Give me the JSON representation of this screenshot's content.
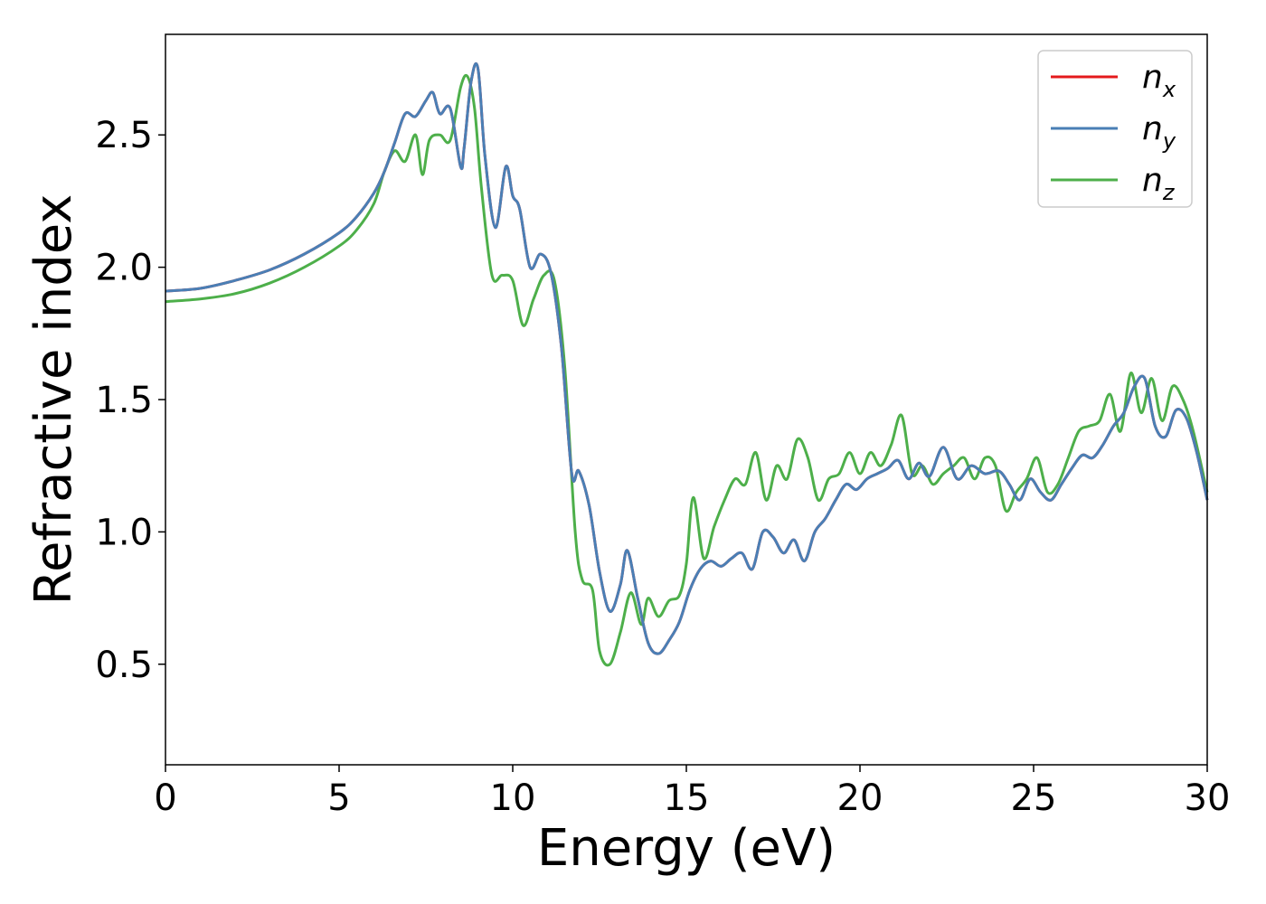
{
  "chart_data": {
    "type": "line",
    "xlabel": "Energy (eV)",
    "ylabel": "Refractive index",
    "xlim": [
      0,
      30
    ],
    "ylim": [
      0.12,
      2.88
    ],
    "xticks": [
      "0",
      "5",
      "10",
      "15",
      "20",
      "25",
      "30"
    ],
    "yticks": [
      "0.5",
      "1.0",
      "1.5",
      "2.0",
      "2.5"
    ],
    "grid": false,
    "legend_position": "top-right",
    "series": [
      {
        "name": "n",
        "subscript": "x",
        "color": "#e41a1c",
        "x": [
          0,
          1,
          2,
          3,
          4,
          5,
          5.5,
          6,
          6.3,
          6.6,
          6.9,
          7.2,
          7.5,
          7.7,
          7.9,
          8.2,
          8.5,
          8.6,
          8.8,
          9.0,
          9.2,
          9.5,
          9.8,
          10.0,
          10.2,
          10.5,
          10.8,
          11.1,
          11.4,
          11.7,
          11.9,
          12.2,
          12.5,
          12.8,
          13.1,
          13.3,
          13.6,
          13.9,
          14.2,
          14.5,
          14.8,
          15.1,
          15.4,
          15.7,
          16.0,
          16.3,
          16.6,
          16.9,
          17.2,
          17.5,
          17.8,
          18.1,
          18.4,
          18.7,
          19.0,
          19.3,
          19.6,
          19.9,
          20.2,
          20.5,
          20.8,
          21.1,
          21.4,
          21.7,
          22.0,
          22.4,
          22.8,
          23.2,
          23.6,
          24.0,
          24.3,
          24.6,
          24.9,
          25.2,
          25.5,
          25.8,
          26.1,
          26.4,
          26.7,
          27.0,
          27.3,
          27.6,
          27.9,
          28.2,
          28.5,
          28.8,
          29.1,
          29.4,
          29.7,
          30.0
        ],
        "values": [
          1.91,
          1.92,
          1.95,
          1.99,
          2.05,
          2.13,
          2.19,
          2.28,
          2.36,
          2.47,
          2.58,
          2.57,
          2.63,
          2.66,
          2.58,
          2.6,
          2.38,
          2.45,
          2.7,
          2.75,
          2.42,
          2.15,
          2.38,
          2.27,
          2.22,
          2.0,
          2.05,
          1.98,
          1.7,
          1.22,
          1.23,
          1.1,
          0.85,
          0.7,
          0.8,
          0.93,
          0.75,
          0.58,
          0.54,
          0.59,
          0.66,
          0.78,
          0.86,
          0.89,
          0.87,
          0.9,
          0.92,
          0.86,
          1.0,
          0.98,
          0.92,
          0.97,
          0.89,
          1.0,
          1.05,
          1.12,
          1.18,
          1.16,
          1.2,
          1.22,
          1.24,
          1.27,
          1.2,
          1.26,
          1.21,
          1.32,
          1.2,
          1.25,
          1.22,
          1.23,
          1.18,
          1.12,
          1.2,
          1.15,
          1.12,
          1.18,
          1.24,
          1.29,
          1.28,
          1.33,
          1.4,
          1.45,
          1.55,
          1.58,
          1.4,
          1.36,
          1.46,
          1.43,
          1.3,
          1.12
        ]
      },
      {
        "name": "n",
        "subscript": "y",
        "color": "#4a7fb5",
        "x": [
          0,
          1,
          2,
          3,
          4,
          5,
          5.5,
          6,
          6.3,
          6.6,
          6.9,
          7.2,
          7.5,
          7.7,
          7.9,
          8.2,
          8.5,
          8.6,
          8.8,
          9.0,
          9.2,
          9.5,
          9.8,
          10.0,
          10.2,
          10.5,
          10.8,
          11.1,
          11.4,
          11.7,
          11.9,
          12.2,
          12.5,
          12.8,
          13.1,
          13.3,
          13.6,
          13.9,
          14.2,
          14.5,
          14.8,
          15.1,
          15.4,
          15.7,
          16.0,
          16.3,
          16.6,
          16.9,
          17.2,
          17.5,
          17.8,
          18.1,
          18.4,
          18.7,
          19.0,
          19.3,
          19.6,
          19.9,
          20.2,
          20.5,
          20.8,
          21.1,
          21.4,
          21.7,
          22.0,
          22.4,
          22.8,
          23.2,
          23.6,
          24.0,
          24.3,
          24.6,
          24.9,
          25.2,
          25.5,
          25.8,
          26.1,
          26.4,
          26.7,
          27.0,
          27.3,
          27.6,
          27.9,
          28.2,
          28.5,
          28.8,
          29.1,
          29.4,
          29.7,
          30.0
        ],
        "values": [
          1.91,
          1.92,
          1.95,
          1.99,
          2.05,
          2.13,
          2.19,
          2.28,
          2.36,
          2.47,
          2.58,
          2.57,
          2.63,
          2.66,
          2.58,
          2.6,
          2.38,
          2.45,
          2.7,
          2.75,
          2.42,
          2.15,
          2.38,
          2.27,
          2.22,
          2.0,
          2.05,
          1.98,
          1.7,
          1.22,
          1.23,
          1.1,
          0.85,
          0.7,
          0.8,
          0.93,
          0.75,
          0.58,
          0.54,
          0.59,
          0.66,
          0.78,
          0.86,
          0.89,
          0.87,
          0.9,
          0.92,
          0.86,
          1.0,
          0.98,
          0.92,
          0.97,
          0.89,
          1.0,
          1.05,
          1.12,
          1.18,
          1.16,
          1.2,
          1.22,
          1.24,
          1.27,
          1.2,
          1.26,
          1.21,
          1.32,
          1.2,
          1.25,
          1.22,
          1.23,
          1.18,
          1.12,
          1.2,
          1.15,
          1.12,
          1.18,
          1.24,
          1.29,
          1.28,
          1.33,
          1.4,
          1.45,
          1.55,
          1.58,
          1.4,
          1.36,
          1.46,
          1.43,
          1.3,
          1.12
        ]
      },
      {
        "name": "n",
        "subscript": "z",
        "color": "#4daf4a",
        "x": [
          0,
          1,
          2,
          3,
          4,
          5,
          5.5,
          6,
          6.3,
          6.6,
          6.9,
          7.2,
          7.4,
          7.6,
          7.9,
          8.2,
          8.5,
          8.7,
          8.9,
          9.1,
          9.4,
          9.7,
          10.0,
          10.3,
          10.6,
          10.9,
          11.2,
          11.5,
          11.8,
          12.0,
          12.3,
          12.5,
          12.8,
          13.1,
          13.4,
          13.7,
          13.9,
          14.2,
          14.5,
          14.8,
          15.0,
          15.2,
          15.5,
          15.8,
          16.1,
          16.4,
          16.7,
          17.0,
          17.3,
          17.6,
          17.9,
          18.2,
          18.5,
          18.8,
          19.1,
          19.4,
          19.7,
          20.0,
          20.3,
          20.6,
          20.9,
          21.2,
          21.5,
          21.8,
          22.1,
          22.4,
          22.7,
          23.0,
          23.3,
          23.6,
          23.9,
          24.2,
          24.5,
          24.8,
          25.1,
          25.4,
          25.7,
          26.0,
          26.3,
          26.6,
          26.9,
          27.2,
          27.5,
          27.8,
          28.1,
          28.4,
          28.7,
          29.0,
          29.3,
          29.6,
          30.0
        ],
        "values": [
          1.87,
          1.88,
          1.9,
          1.94,
          2.0,
          2.08,
          2.14,
          2.24,
          2.36,
          2.44,
          2.4,
          2.5,
          2.35,
          2.48,
          2.5,
          2.48,
          2.68,
          2.72,
          2.6,
          2.3,
          1.97,
          1.97,
          1.95,
          1.78,
          1.88,
          1.97,
          1.95,
          1.62,
          1.0,
          0.82,
          0.78,
          0.55,
          0.5,
          0.62,
          0.77,
          0.65,
          0.75,
          0.68,
          0.74,
          0.76,
          0.88,
          1.13,
          0.9,
          1.02,
          1.12,
          1.2,
          1.18,
          1.3,
          1.12,
          1.25,
          1.2,
          1.35,
          1.28,
          1.12,
          1.2,
          1.22,
          1.3,
          1.22,
          1.3,
          1.25,
          1.33,
          1.44,
          1.22,
          1.25,
          1.18,
          1.22,
          1.25,
          1.28,
          1.2,
          1.28,
          1.25,
          1.08,
          1.15,
          1.2,
          1.28,
          1.15,
          1.18,
          1.28,
          1.38,
          1.4,
          1.42,
          1.52,
          1.38,
          1.6,
          1.45,
          1.58,
          1.42,
          1.55,
          1.5,
          1.38,
          1.15
        ]
      }
    ]
  }
}
